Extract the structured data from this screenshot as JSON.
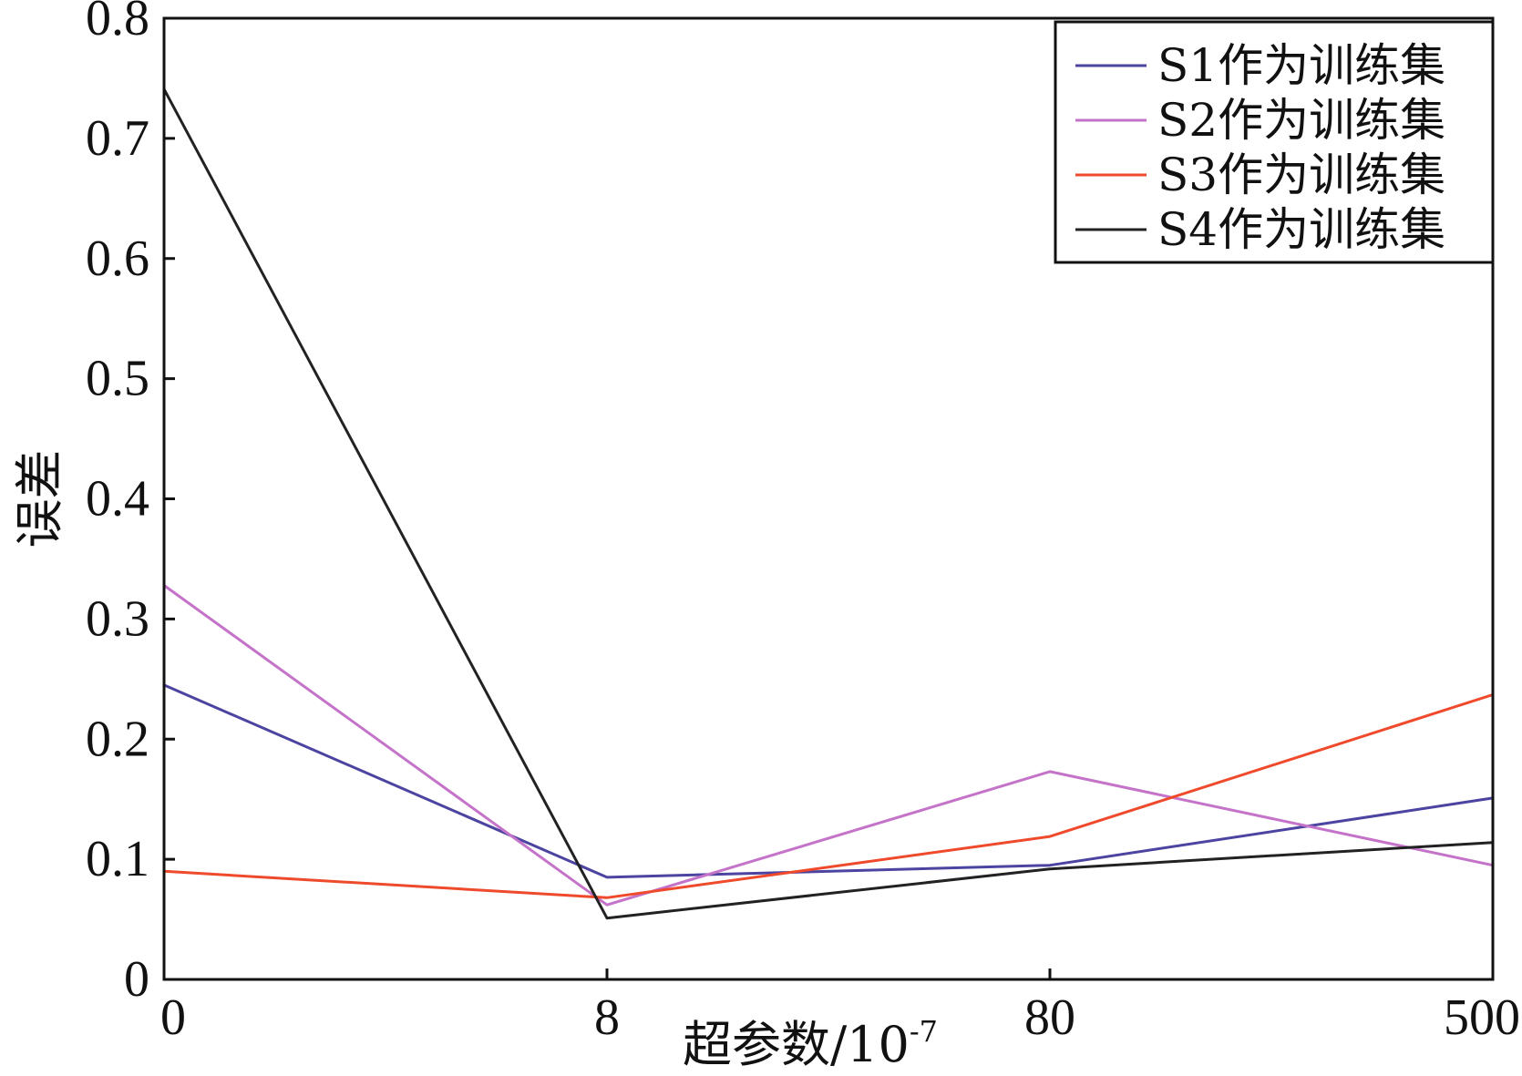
{
  "chart_data": {
    "type": "line",
    "title": "",
    "xlabel": "超参数/10",
    "xlabel_exponent": "-7",
    "ylabel": "误差",
    "categories": [
      "0",
      "8",
      "80",
      "500"
    ],
    "ylim": [
      0,
      0.8
    ],
    "yticks": [
      0,
      0.1,
      0.2,
      0.3,
      0.4,
      0.5,
      0.6,
      0.7,
      0.8
    ],
    "ytick_labels": [
      "0",
      "0.1",
      "0.2",
      "0.3",
      "0.4",
      "0.5",
      "0.6",
      "0.7",
      "0.8"
    ],
    "grid": false,
    "legend_position": "top-right",
    "series": [
      {
        "name": "S1作为训练集",
        "color": "#4b44a0",
        "values": [
          0.245,
          0.085,
          0.095,
          0.151
        ]
      },
      {
        "name": "S2作为训练集",
        "color": "#c473c9",
        "values": [
          0.328,
          0.062,
          0.173,
          0.095
        ]
      },
      {
        "name": "S3作为训练集",
        "color": "#ef4a2c",
        "values": [
          0.09,
          0.068,
          0.119,
          0.237
        ]
      },
      {
        "name": "S4作为训练集",
        "color": "#222222",
        "values": [
          0.741,
          0.051,
          0.092,
          0.114
        ]
      }
    ]
  }
}
